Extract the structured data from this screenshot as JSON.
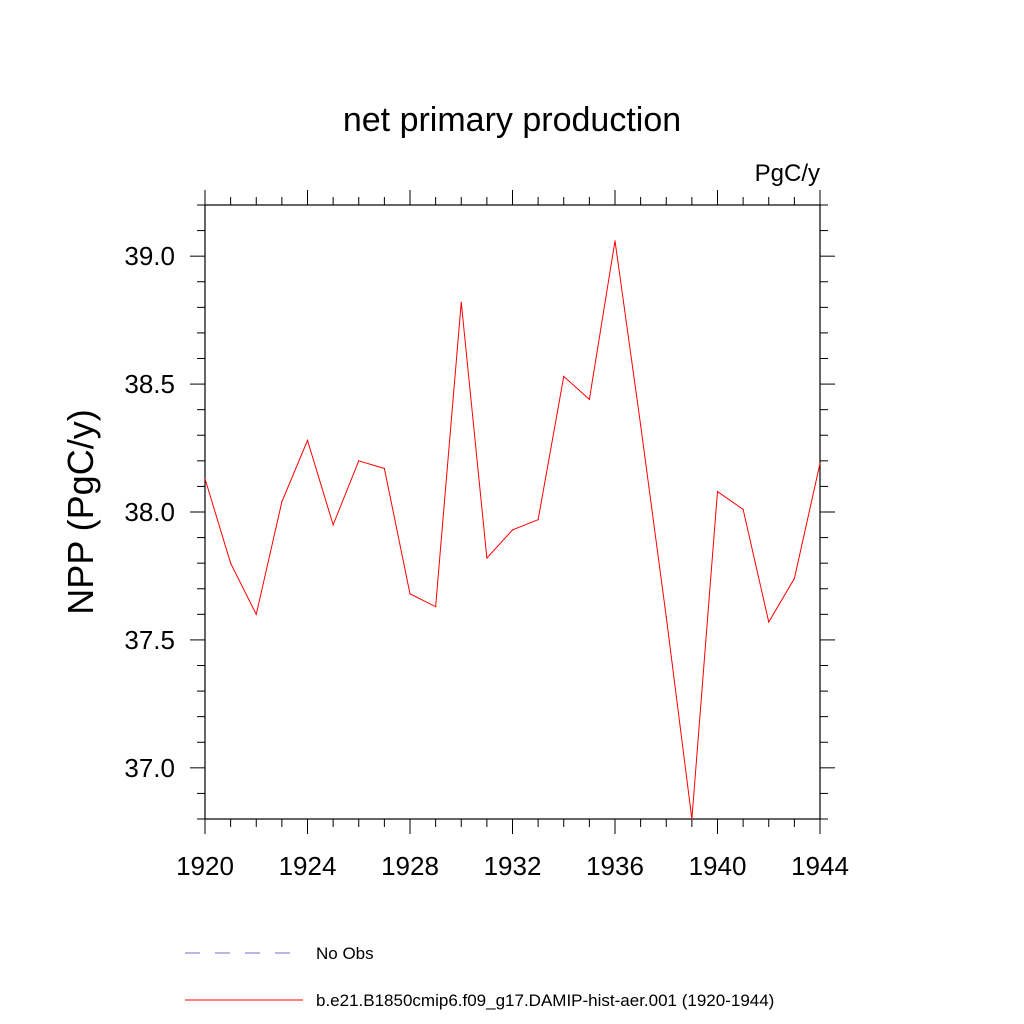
{
  "chart_data": {
    "type": "line",
    "title": "net primary production",
    "unit_label": "PgC/y",
    "ylabel": "NPP  (PgC/y)",
    "xlabel": "",
    "xlim": [
      1920,
      1944
    ],
    "ylim": [
      36.8,
      39.2
    ],
    "x_ticks": [
      1920,
      1924,
      1928,
      1932,
      1936,
      1940,
      1944
    ],
    "x_tick_labels": [
      "1920",
      "1924",
      "1928",
      "1932",
      "1936",
      "1940",
      "1944"
    ],
    "y_ticks": [
      37.0,
      37.5,
      38.0,
      38.5,
      39.0
    ],
    "y_tick_labels": [
      "37.0",
      "37.5",
      "38.0",
      "38.5",
      "39.0"
    ],
    "grid": false,
    "legend_position": "bottom",
    "series": [
      {
        "name": "b.e21.B1850cmip6.f09_g17.DAMIP-hist-aer.001 (1920-1944)",
        "color": "#ff0000",
        "style": "solid",
        "x": [
          1920,
          1921,
          1922,
          1923,
          1924,
          1925,
          1926,
          1927,
          1928,
          1929,
          1930,
          1931,
          1932,
          1933,
          1934,
          1935,
          1936,
          1937,
          1938,
          1939,
          1940,
          1941,
          1942,
          1943,
          1944
        ],
        "y": [
          38.13,
          37.8,
          37.6,
          38.04,
          38.28,
          37.95,
          38.2,
          38.17,
          37.68,
          37.63,
          38.82,
          37.82,
          37.93,
          37.97,
          38.53,
          38.44,
          39.06,
          38.34,
          37.59,
          36.8,
          38.08,
          38.01,
          37.57,
          37.74,
          38.19
        ]
      }
    ],
    "legend": [
      {
        "label": "No Obs",
        "color": "#7b68c8",
        "style": "dashed"
      },
      {
        "label": "b.e21.B1850cmip6.f09_g17.DAMIP-hist-aer.001 (1920-1944)",
        "color": "#ff0000",
        "style": "solid"
      }
    ]
  }
}
